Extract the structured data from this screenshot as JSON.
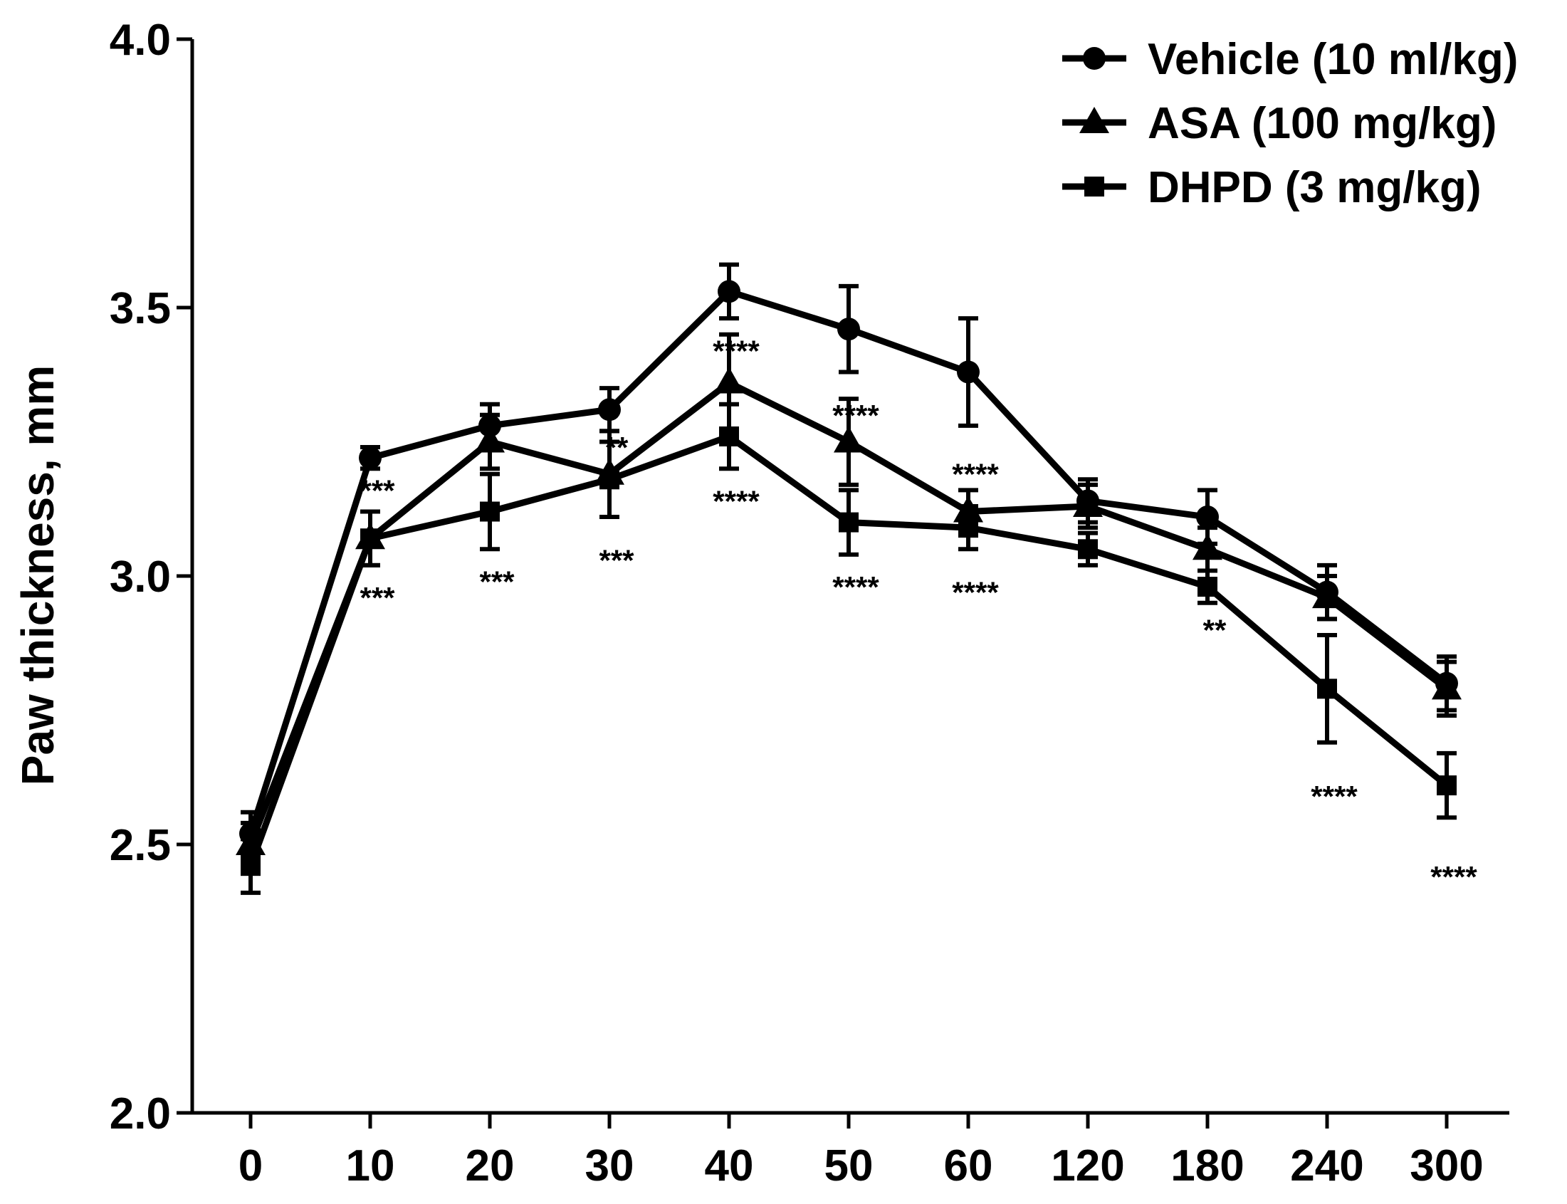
{
  "chart_data": {
    "type": "line",
    "title": "",
    "xlabel": "",
    "ylabel": "Paw thickness, mm",
    "categories": [
      "0",
      "10",
      "20",
      "30",
      "40",
      "50",
      "60",
      "120",
      "180",
      "240",
      "300"
    ],
    "ylim": [
      2.0,
      4.0
    ],
    "yticks": [
      "2.0",
      "2.5",
      "3.0",
      "3.5",
      "4.0"
    ],
    "legend_position": "top-right",
    "series": [
      {
        "name": "Vehicle (10 ml/kg)",
        "marker": "circle",
        "values": [
          2.52,
          3.22,
          3.28,
          3.31,
          3.53,
          3.46,
          3.38,
          3.14,
          3.11,
          2.97,
          2.8
        ],
        "errors": [
          0.04,
          0.02,
          0.04,
          0.04,
          0.05,
          0.08,
          0.1,
          0.04,
          0.05,
          0.05,
          0.05
        ]
      },
      {
        "name": "ASA (100 mg/kg)",
        "marker": "triangle",
        "values": [
          2.5,
          3.07,
          3.25,
          3.19,
          3.36,
          3.25,
          3.12,
          3.13,
          3.05,
          2.96,
          2.79
        ],
        "errors": [
          0.04,
          0.05,
          0.05,
          0.08,
          0.09,
          0.08,
          0.04,
          0.04,
          0.04,
          0.04,
          0.05
        ]
      },
      {
        "name": "DHPD (3 mg/kg)",
        "marker": "square",
        "values": [
          2.46,
          3.07,
          3.12,
          3.18,
          3.26,
          3.1,
          3.09,
          3.05,
          2.98,
          2.79,
          2.61
        ],
        "errors": [
          0.05,
          0.05,
          0.07,
          0.07,
          0.06,
          0.06,
          0.04,
          0.03,
          0.03,
          0.1,
          0.06
        ]
      }
    ],
    "annotations": [
      {
        "text": "***",
        "x": "10",
        "y": 3.16
      },
      {
        "text": "***",
        "x": "10",
        "y": 2.96
      },
      {
        "text": "***",
        "x": "20",
        "y": 2.99
      },
      {
        "text": "**",
        "x": "30",
        "y": 3.24
      },
      {
        "text": "***",
        "x": "30",
        "y": 3.03
      },
      {
        "text": "****",
        "x": "40",
        "y": 3.42
      },
      {
        "text": "****",
        "x": "40",
        "y": 3.14
      },
      {
        "text": "****",
        "x": "50",
        "y": 3.3
      },
      {
        "text": "****",
        "x": "50",
        "y": 2.98
      },
      {
        "text": "****",
        "x": "60",
        "y": 3.19
      },
      {
        "text": "****",
        "x": "60",
        "y": 2.97
      },
      {
        "text": "**",
        "x": "180",
        "y": 2.9
      },
      {
        "text": "****",
        "x": "240",
        "y": 2.59
      },
      {
        "text": "****",
        "x": "300",
        "y": 2.44
      }
    ]
  }
}
